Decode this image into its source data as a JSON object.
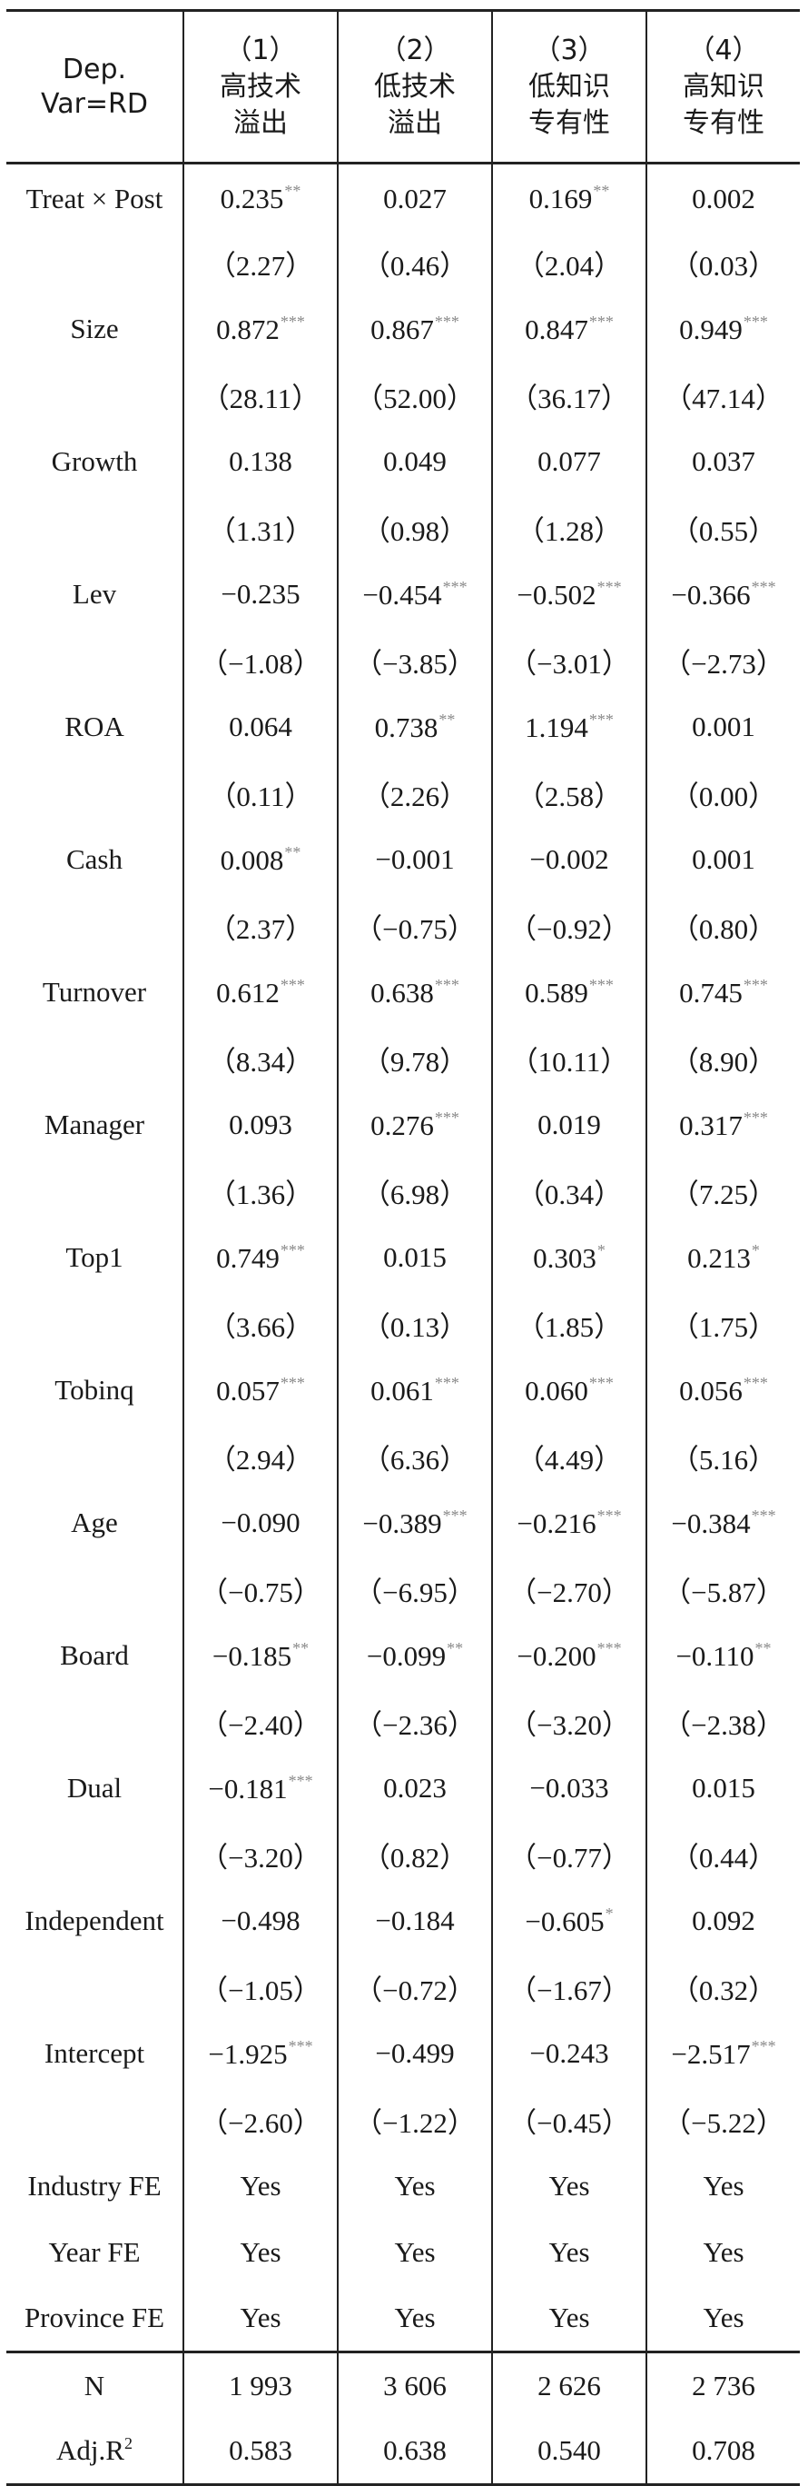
{
  "header": {
    "dep_var_line1": "Dep.",
    "dep_var_line2": "Var=RD",
    "columns": [
      {
        "num": "（1）",
        "line1": "高技术",
        "line2": "溢出"
      },
      {
        "num": "（2）",
        "line1": "低技术",
        "line2": "溢出"
      },
      {
        "num": "（3）",
        "line1": "低知识",
        "line2": "专有性"
      },
      {
        "num": "（4）",
        "line1": "高知识",
        "line2": "专有性"
      }
    ]
  },
  "rows": [
    {
      "label": "Treat × Post",
      "coef": [
        {
          "v": "0.235",
          "s": "**"
        },
        {
          "v": "0.027",
          "s": ""
        },
        {
          "v": "0.169",
          "s": "**"
        },
        {
          "v": "0.002",
          "s": ""
        }
      ],
      "t": [
        "（2.27）",
        "（0.46）",
        "（2.04）",
        "（0.03）"
      ]
    },
    {
      "label": "Size",
      "coef": [
        {
          "v": "0.872",
          "s": "***"
        },
        {
          "v": "0.867",
          "s": "***"
        },
        {
          "v": "0.847",
          "s": "***"
        },
        {
          "v": "0.949",
          "s": "***"
        }
      ],
      "t": [
        "（28.11）",
        "（52.00）",
        "（36.17）",
        "（47.14）"
      ]
    },
    {
      "label": "Growth",
      "coef": [
        {
          "v": "0.138",
          "s": ""
        },
        {
          "v": "0.049",
          "s": ""
        },
        {
          "v": "0.077",
          "s": ""
        },
        {
          "v": "0.037",
          "s": ""
        }
      ],
      "t": [
        "（1.31）",
        "（0.98）",
        "（1.28）",
        "（0.55）"
      ]
    },
    {
      "label": "Lev",
      "coef": [
        {
          "v": "−0.235",
          "s": ""
        },
        {
          "v": "−0.454",
          "s": "***"
        },
        {
          "v": "−0.502",
          "s": "***"
        },
        {
          "v": "−0.366",
          "s": "***"
        }
      ],
      "t": [
        "（−1.08）",
        "（−3.85）",
        "（−3.01）",
        "（−2.73）"
      ]
    },
    {
      "label": "ROA",
      "coef": [
        {
          "v": "0.064",
          "s": ""
        },
        {
          "v": "0.738",
          "s": "**"
        },
        {
          "v": "1.194",
          "s": "***"
        },
        {
          "v": "0.001",
          "s": ""
        }
      ],
      "t": [
        "（0.11）",
        "（2.26）",
        "（2.58）",
        "（0.00）"
      ]
    },
    {
      "label": "Cash",
      "coef": [
        {
          "v": "0.008",
          "s": "**"
        },
        {
          "v": "−0.001",
          "s": ""
        },
        {
          "v": "−0.002",
          "s": ""
        },
        {
          "v": "0.001",
          "s": ""
        }
      ],
      "t": [
        "（2.37）",
        "（−0.75）",
        "（−0.92）",
        "（0.80）"
      ]
    },
    {
      "label": "Turnover",
      "coef": [
        {
          "v": "0.612",
          "s": "***"
        },
        {
          "v": "0.638",
          "s": "***"
        },
        {
          "v": "0.589",
          "s": "***"
        },
        {
          "v": "0.745",
          "s": "***"
        }
      ],
      "t": [
        "（8.34）",
        "（9.78）",
        "（10.11）",
        "（8.90）"
      ]
    },
    {
      "label": "Manager",
      "coef": [
        {
          "v": "0.093",
          "s": ""
        },
        {
          "v": "0.276",
          "s": "***"
        },
        {
          "v": "0.019",
          "s": ""
        },
        {
          "v": "0.317",
          "s": "***"
        }
      ],
      "t": [
        "（1.36）",
        "（6.98）",
        "（0.34）",
        "（7.25）"
      ]
    },
    {
      "label": "Top1",
      "coef": [
        {
          "v": "0.749",
          "s": "***"
        },
        {
          "v": "0.015",
          "s": ""
        },
        {
          "v": "0.303",
          "s": "*"
        },
        {
          "v": "0.213",
          "s": "*"
        }
      ],
      "t": [
        "（3.66）",
        "（0.13）",
        "（1.85）",
        "（1.75）"
      ]
    },
    {
      "label": "Tobinq",
      "coef": [
        {
          "v": "0.057",
          "s": "***"
        },
        {
          "v": "0.061",
          "s": "***"
        },
        {
          "v": "0.060",
          "s": "***"
        },
        {
          "v": "0.056",
          "s": "***"
        }
      ],
      "t": [
        "（2.94）",
        "（6.36）",
        "（4.49）",
        "（5.16）"
      ]
    },
    {
      "label": "Age",
      "coef": [
        {
          "v": "−0.090",
          "s": ""
        },
        {
          "v": "−0.389",
          "s": "***"
        },
        {
          "v": "−0.216",
          "s": "***"
        },
        {
          "v": "−0.384",
          "s": "***"
        }
      ],
      "t": [
        "（−0.75）",
        "（−6.95）",
        "（−2.70）",
        "（−5.87）"
      ]
    },
    {
      "label": "Board",
      "coef": [
        {
          "v": "−0.185",
          "s": "**"
        },
        {
          "v": "−0.099",
          "s": "**"
        },
        {
          "v": "−0.200",
          "s": "***"
        },
        {
          "v": "−0.110",
          "s": "**"
        }
      ],
      "t": [
        "（−2.40）",
        "（−2.36）",
        "（−3.20）",
        "（−2.38）"
      ]
    },
    {
      "label": "Dual",
      "coef": [
        {
          "v": "−0.181",
          "s": "***"
        },
        {
          "v": "0.023",
          "s": ""
        },
        {
          "v": "−0.033",
          "s": ""
        },
        {
          "v": "0.015",
          "s": ""
        }
      ],
      "t": [
        "（−3.20）",
        "（0.82）",
        "（−0.77）",
        "（0.44）"
      ]
    },
    {
      "label": "Independent",
      "coef": [
        {
          "v": "−0.498",
          "s": ""
        },
        {
          "v": "−0.184",
          "s": ""
        },
        {
          "v": "−0.605",
          "s": "*"
        },
        {
          "v": "0.092",
          "s": ""
        }
      ],
      "t": [
        "（−1.05）",
        "（−0.72）",
        "（−1.67）",
        "（0.32）"
      ]
    },
    {
      "label": "Intercept",
      "coef": [
        {
          "v": "−1.925",
          "s": "***"
        },
        {
          "v": "−0.499",
          "s": ""
        },
        {
          "v": "−0.243",
          "s": ""
        },
        {
          "v": "−2.517",
          "s": "***"
        }
      ],
      "t": [
        "（−2.60）",
        "（−1.22）",
        "（−0.45）",
        "（−5.22）"
      ]
    }
  ],
  "fixed_effects": [
    {
      "label": "Industry FE",
      "values": [
        "Yes",
        "Yes",
        "Yes",
        "Yes"
      ]
    },
    {
      "label": "Year FE",
      "values": [
        "Yes",
        "Yes",
        "Yes",
        "Yes"
      ]
    },
    {
      "label": "Province FE",
      "values": [
        "Yes",
        "Yes",
        "Yes",
        "Yes"
      ]
    }
  ],
  "stats": {
    "n_label": "N",
    "n_values": [
      "1 993",
      "3 606",
      "2 626",
      "2 736"
    ],
    "r2_label": "Adj.R",
    "r2_sup": "2",
    "r2_values": [
      "0.583",
      "0.638",
      "0.540",
      "0.708"
    ]
  },
  "colors": {
    "rule": "#222222",
    "stars": "#8a8a8a",
    "text": "#1a1a1a"
  }
}
